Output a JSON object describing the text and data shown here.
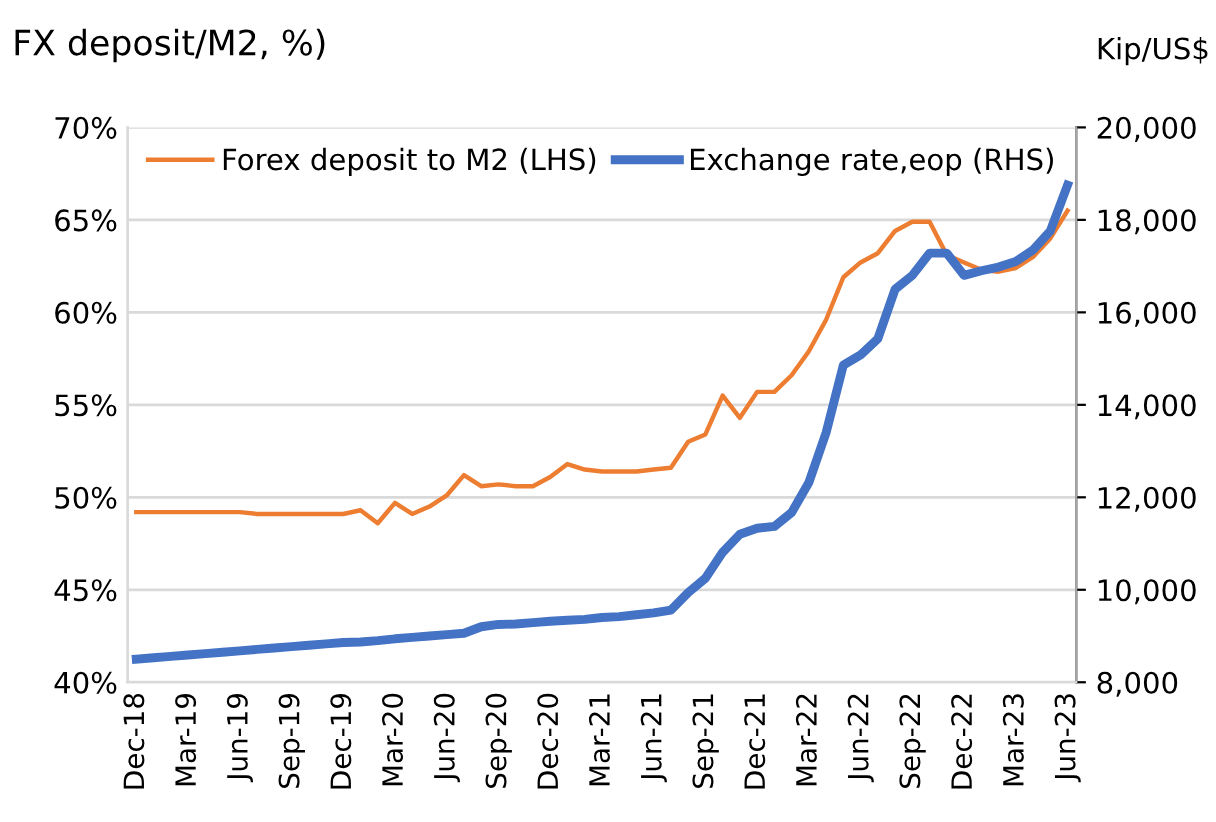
{
  "chart_data": {
    "type": "line",
    "ylabel": "FX deposit/M2, %)",
    "y2label": "Kip/US$",
    "categories": [
      "Dec-18",
      null,
      null,
      "Mar-19",
      null,
      null,
      "Jun-19",
      null,
      null,
      "Sep-19",
      null,
      null,
      "Dec-19",
      null,
      null,
      "Mar-20",
      null,
      null,
      "Jun-20",
      null,
      null,
      "Sep-20",
      null,
      null,
      "Dec-20",
      null,
      null,
      "Mar-21",
      null,
      null,
      "Jun-21",
      null,
      null,
      "Sep-21",
      null,
      null,
      "Dec-21",
      null,
      null,
      "Mar-22",
      null,
      null,
      "Jun-22",
      null,
      null,
      "Sep-22",
      null,
      null,
      "Dec-22",
      null,
      null,
      "Mar-23",
      null,
      null,
      "Jun-23"
    ],
    "series": [
      {
        "name": "Forex deposit to M2 (LHS)",
        "color": "#ed7d31",
        "values": [
          49.2,
          49.2,
          49.2,
          49.2,
          49.2,
          49.2,
          49.2,
          49.1,
          49.1,
          49.1,
          49.1,
          49.1,
          49.1,
          49.3,
          48.6,
          49.7,
          49.1,
          49.5,
          50.1,
          51.2,
          50.6,
          50.7,
          50.6,
          50.6,
          51.1,
          51.8,
          51.5,
          51.4,
          51.4,
          51.4,
          51.5,
          51.6,
          53.0,
          53.4,
          55.5,
          54.3,
          55.7,
          55.7,
          56.6,
          57.9,
          59.6,
          61.9,
          62.7,
          63.2,
          64.4,
          64.9,
          64.9,
          63.1,
          62.7,
          62.3,
          62.2,
          62.4,
          63.0,
          64.0,
          65.5
        ]
      },
      {
        "name": "Exchange rate,eop (RHS)",
        "color": "#4472c4",
        "axis": "y2",
        "values": [
          8500,
          8530,
          8560,
          8590,
          8620,
          8650,
          8680,
          8710,
          8740,
          8770,
          8800,
          8830,
          8860,
          8870,
          8900,
          8940,
          8970,
          9000,
          9030,
          9060,
          9200,
          9250,
          9260,
          9290,
          9320,
          9340,
          9360,
          9400,
          9420,
          9460,
          9500,
          9560,
          9940,
          10250,
          10810,
          11200,
          11330,
          11370,
          11670,
          12320,
          13400,
          14860,
          15080,
          15430,
          16500,
          16800,
          17280,
          17280,
          16800,
          16900,
          16980,
          17100,
          17350,
          17760,
          18750
        ]
      }
    ],
    "ylim": [
      40,
      70
    ],
    "yticks": [
      {
        "value": 40,
        "label": "40%"
      },
      {
        "value": 45,
        "label": "45%"
      },
      {
        "value": 50,
        "label": "50%"
      },
      {
        "value": 55,
        "label": "55%"
      },
      {
        "value": 60,
        "label": "60%"
      },
      {
        "value": 65,
        "label": "65%"
      },
      {
        "value": 70,
        "label": "70%"
      }
    ],
    "y2lim": [
      8000,
      20000
    ],
    "y2ticks": [
      {
        "value": 8000,
        "label": "8,000"
      },
      {
        "value": 10000,
        "label": "10,000"
      },
      {
        "value": 12000,
        "label": "12,000"
      },
      {
        "value": 14000,
        "label": "14,000"
      },
      {
        "value": 16000,
        "label": "16,000"
      },
      {
        "value": 18000,
        "label": "18,000"
      },
      {
        "value": 20000,
        "label": "20,000"
      }
    ],
    "grid": "y",
    "legend": "top left"
  }
}
